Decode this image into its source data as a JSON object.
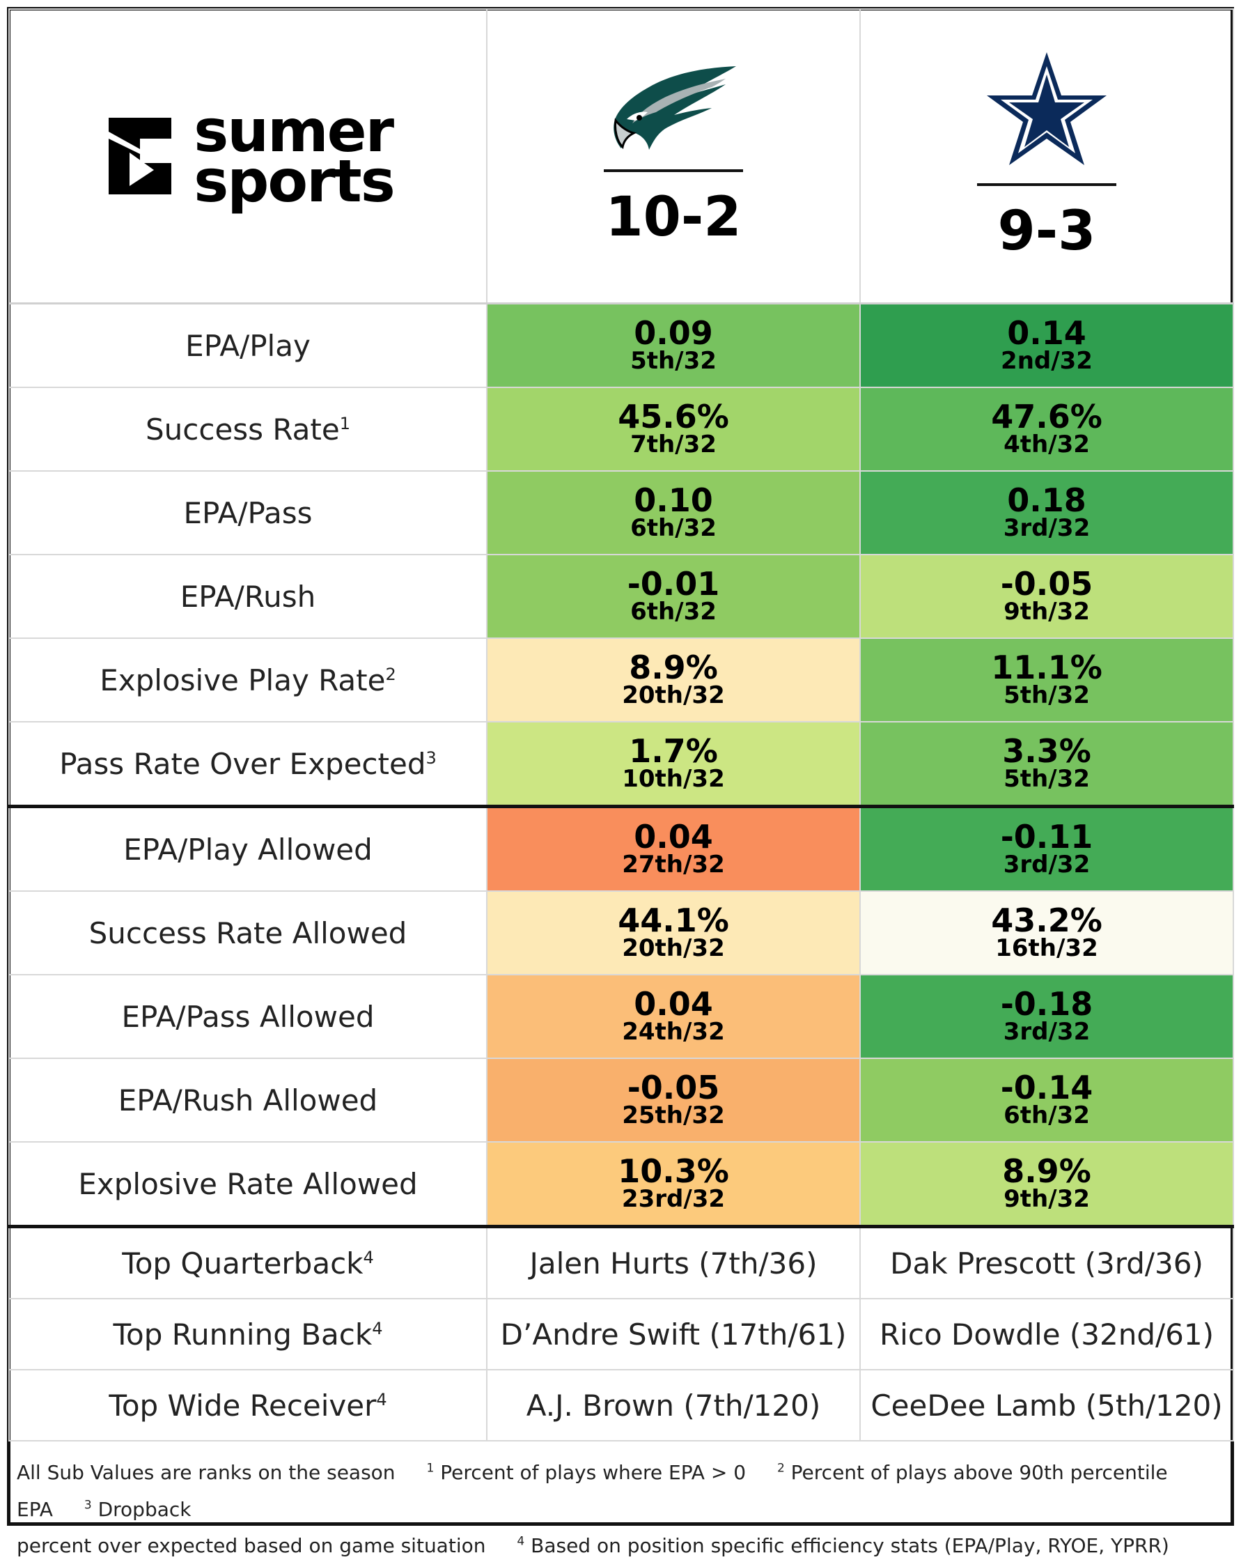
{
  "brand": {
    "line1": "sumer",
    "line2": "sports"
  },
  "teams": [
    {
      "icon": "eagle-head-icon",
      "record": "10-2"
    },
    {
      "icon": "star-icon",
      "record": "9-3"
    }
  ],
  "offense": [
    {
      "label": "EPA/Play",
      "sup": "",
      "cells": [
        {
          "value": "0.09",
          "rank": "5th/32",
          "color": "#77c25f"
        },
        {
          "value": "0.14",
          "rank": "2nd/32",
          "color": "#2f9e4f"
        }
      ]
    },
    {
      "label": "Success Rate",
      "sup": "1",
      "cells": [
        {
          "value": "45.6%",
          "rank": "7th/32",
          "color": "#a2d56a"
        },
        {
          "value": "47.6%",
          "rank": "4th/32",
          "color": "#5eb85a"
        }
      ]
    },
    {
      "label": "EPA/Pass",
      "sup": "",
      "cells": [
        {
          "value": "0.10",
          "rank": "6th/32",
          "color": "#8fcb62"
        },
        {
          "value": "0.18",
          "rank": "3rd/32",
          "color": "#44ab56"
        }
      ]
    },
    {
      "label": "EPA/Rush",
      "sup": "",
      "cells": [
        {
          "value": "-0.01",
          "rank": "6th/32",
          "color": "#8fcb62"
        },
        {
          "value": "-0.05",
          "rank": "9th/32",
          "color": "#bde07b"
        }
      ]
    },
    {
      "label": "Explosive Play Rate",
      "sup": "2",
      "cells": [
        {
          "value": "8.9%",
          "rank": "20th/32",
          "color": "#fde9b6"
        },
        {
          "value": "11.1%",
          "rank": "5th/32",
          "color": "#77c25f"
        }
      ]
    },
    {
      "label": "Pass Rate Over Expected",
      "sup": "3",
      "cells": [
        {
          "value": "1.7%",
          "rank": "10th/32",
          "color": "#cce683"
        },
        {
          "value": "3.3%",
          "rank": "5th/32",
          "color": "#77c25f"
        }
      ]
    }
  ],
  "defense": [
    {
      "label": "EPA/Play Allowed",
      "sup": "",
      "cells": [
        {
          "value": "0.04",
          "rank": "27th/32",
          "color": "#f98e5c"
        },
        {
          "value": "-0.11",
          "rank": "3rd/32",
          "color": "#44ab56"
        }
      ]
    },
    {
      "label": "Success Rate Allowed",
      "sup": "",
      "cells": [
        {
          "value": "44.1%",
          "rank": "20th/32",
          "color": "#fde9b6"
        },
        {
          "value": "43.2%",
          "rank": "16th/32",
          "color": "#fbfaef"
        }
      ]
    },
    {
      "label": "EPA/Pass Allowed",
      "sup": "",
      "cells": [
        {
          "value": "0.04",
          "rank": "24th/32",
          "color": "#fbbe78"
        },
        {
          "value": "-0.18",
          "rank": "3rd/32",
          "color": "#44ab56"
        }
      ]
    },
    {
      "label": "EPA/Rush Allowed",
      "sup": "",
      "cells": [
        {
          "value": "-0.05",
          "rank": "25th/32",
          "color": "#f9b06c"
        },
        {
          "value": "-0.14",
          "rank": "6th/32",
          "color": "#8fcb62"
        }
      ]
    },
    {
      "label": "Explosive Rate Allowed",
      "sup": "",
      "cells": [
        {
          "value": "10.3%",
          "rank": "23rd/32",
          "color": "#fcca7c"
        },
        {
          "value": "8.9%",
          "rank": "9th/32",
          "color": "#bde07b"
        }
      ]
    }
  ],
  "players": [
    {
      "label": "Top Quarterback",
      "sup": "4",
      "values": [
        "Jalen Hurts (7th/36)",
        "Dak Prescott (3rd/36)"
      ]
    },
    {
      "label": "Top Running Back",
      "sup": "4",
      "values": [
        "D’Andre Swift (17th/61)",
        "Rico Dowdle (32nd/61)"
      ]
    },
    {
      "label": "Top Wide Receiver",
      "sup": "4",
      "values": [
        "A.J. Brown (7th/120)",
        "CeeDee Lamb (5th/120)"
      ]
    }
  ],
  "footer": {
    "note": "All Sub Values are ranks on the season",
    "fn1_num": "1",
    "fn1": "Percent of plays where EPA > 0",
    "fn2_num": "2",
    "fn2": "Percent of plays above 90th percentile EPA",
    "fn3_num": "3",
    "fn3a": "Dropback",
    "fn3b": "percent over expected based on game situation",
    "fn4_num": "4",
    "fn4": "Based on position specific efficiency stats (EPA/Play, RYOE, YPRR)"
  }
}
